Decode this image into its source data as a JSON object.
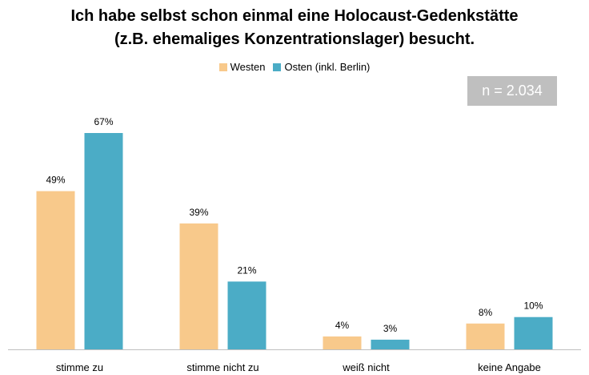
{
  "chart_data": {
    "type": "bar",
    "title_lines": [
      "Ich habe selbst schon einmal eine Holocaust-Gedenkstätte",
      "(z.B. ehemaliges Konzentrationslager) besucht."
    ],
    "annotation": "n = 2.034",
    "categories": [
      "stimme zu",
      "stimme nicht zu",
      "weiß nicht",
      "keine Angabe"
    ],
    "series": [
      {
        "name": "Westen",
        "values": [
          49,
          39,
          4,
          8
        ],
        "labels": [
          "49%",
          "39%",
          "4%",
          "8%"
        ],
        "color": "#f8c98b"
      },
      {
        "name": "Osten (inkl. Berlin)",
        "values": [
          67,
          21,
          3,
          10
        ],
        "labels": [
          "67%",
          "21%",
          "3%",
          "10%"
        ],
        "color": "#4bacc6"
      }
    ],
    "ylim": [
      0,
      67
    ],
    "legend_position": "top",
    "grid": false
  }
}
